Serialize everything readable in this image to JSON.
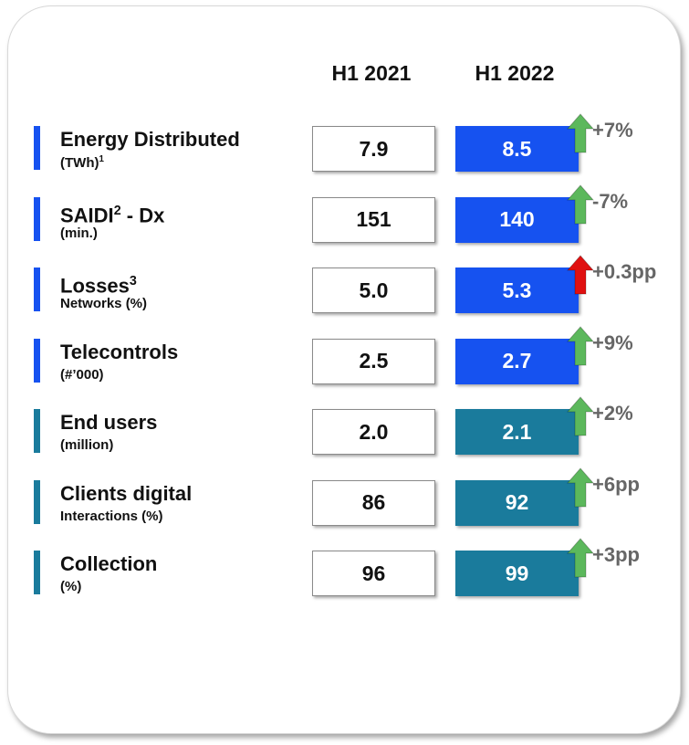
{
  "header": {
    "col1": "H1 2021",
    "col2": "H1 2022"
  },
  "rows": [
    {
      "label": "Energy Distributed",
      "sub": "(TWh)",
      "sub_sup": "1",
      "h1_2021": "7.9",
      "h1_2022": "8.5",
      "change": "+7%",
      "color": "#1652f0",
      "arrow_color": "#5cb85c"
    },
    {
      "label": "SAIDI",
      "label_sup": "2",
      "label_suffix": " - Dx",
      "sub": "(min.)",
      "h1_2021": "151",
      "h1_2022": "140",
      "change": "-7%",
      "color": "#1652f0",
      "arrow_color": "#5cb85c"
    },
    {
      "label": "Losses",
      "label_sup": "3",
      "sub": "Networks (%)",
      "h1_2021": "5.0",
      "h1_2022": "5.3",
      "change": "+0.3pp",
      "color": "#1652f0",
      "arrow_color": "#e01010"
    },
    {
      "label": "Telecontrols",
      "sub": "(#’000)",
      "h1_2021": "2.5",
      "h1_2022": "2.7",
      "change": "+9%",
      "color": "#1652f0",
      "arrow_color": "#5cb85c"
    },
    {
      "label": "End users",
      "sub": "(million)",
      "h1_2021": "2.0",
      "h1_2022": "2.1",
      "change": "+2%",
      "color": "#1a7b9c",
      "arrow_color": "#5cb85c"
    },
    {
      "label": "Clients digital",
      "sub": "Interactions (%)",
      "h1_2021": "86",
      "h1_2022": "92",
      "change": "+6pp",
      "color": "#1a7b9c",
      "arrow_color": "#5cb85c"
    },
    {
      "label": "Collection",
      "sub": " (%)",
      "h1_2021": "96",
      "h1_2022": "99",
      "change": "+3pp",
      "color": "#1a7b9c",
      "arrow_color": "#5cb85c"
    }
  ]
}
